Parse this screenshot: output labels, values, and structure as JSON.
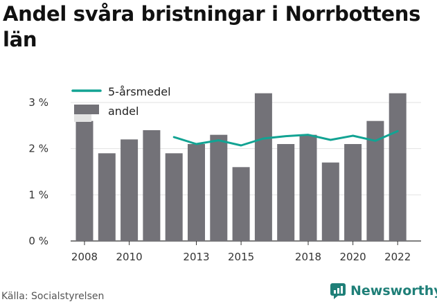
{
  "title": "Andel svåra bristningar i Norrbottens län",
  "source": "Källa: Socialstyrelsen",
  "brand": "Newsworthy",
  "colors": {
    "bar": "#737278",
    "line": "#12a393",
    "grid": "#e2e2e2",
    "brand": "#1f7f78"
  },
  "chart_data": {
    "type": "bar",
    "title": "Andel svåra bristningar i Norrbottens län",
    "xlabel": "",
    "ylabel": "",
    "ylim": [
      0,
      3
    ],
    "yticks": [
      {
        "value": 0,
        "label": "0 %"
      },
      {
        "value": 1,
        "label": "1 %"
      },
      {
        "value": 2,
        "label": "2 %"
      },
      {
        "value": 3,
        "label": "3 %"
      }
    ],
    "categories": [
      2008,
      2009,
      2010,
      2011,
      2012,
      2013,
      2014,
      2015,
      2016,
      2017,
      2018,
      2019,
      2020,
      2021,
      2022
    ],
    "xtick_labels": [
      "2008",
      "2010",
      "2013",
      "2015",
      "2018",
      "2020",
      "2022"
    ],
    "grid": true,
    "legend_position": "top-left",
    "series": [
      {
        "name": "andel",
        "kind": "bar",
        "values": [
          2.6,
          1.9,
          2.2,
          2.4,
          1.9,
          2.1,
          2.3,
          1.6,
          3.2,
          2.1,
          2.3,
          1.7,
          2.1,
          2.6,
          3.2
        ]
      },
      {
        "name": "5-årsmedel",
        "kind": "line",
        "values": [
          null,
          null,
          null,
          null,
          2.25,
          2.1,
          2.18,
          2.07,
          2.22,
          2.27,
          2.3,
          2.19,
          2.28,
          2.17,
          2.38
        ]
      }
    ]
  }
}
